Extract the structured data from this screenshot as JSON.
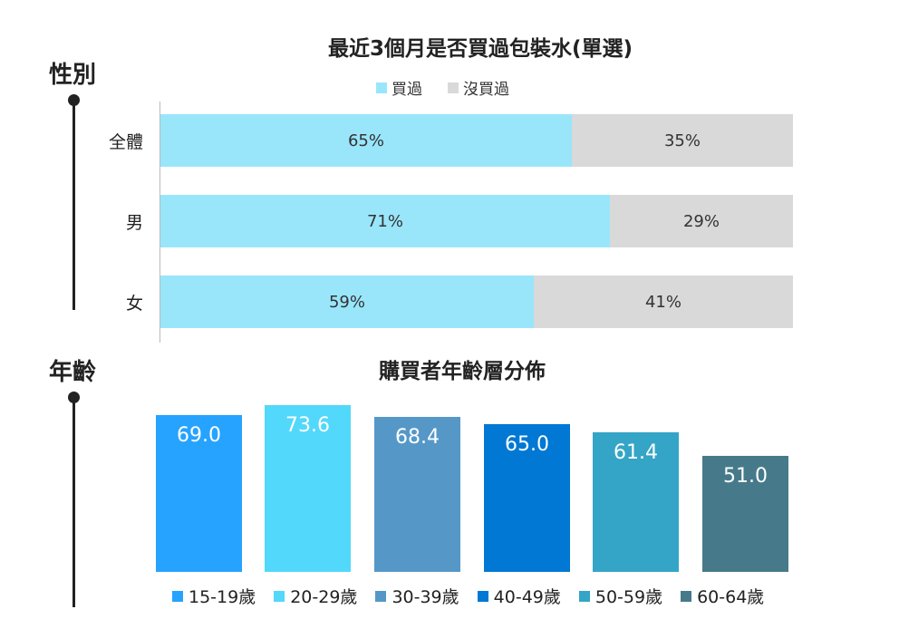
{
  "sections": {
    "gender_label": "性別",
    "age_label": "年齡"
  },
  "chart_data": [
    {
      "type": "bar",
      "orientation": "horizontal-stacked",
      "title": "最近3個月是否買過包裝水(單選)",
      "categories": [
        "全體",
        "男",
        "女"
      ],
      "series": [
        {
          "name": "買過",
          "values": [
            65,
            71,
            59
          ],
          "labels": [
            "65%",
            "71%",
            "59%"
          ],
          "color": "#99e6fb"
        },
        {
          "name": "沒買過",
          "values": [
            35,
            29,
            41
          ],
          "labels": [
            "35%",
            "29%",
            "41%"
          ],
          "color": "#d9d9d9"
        }
      ],
      "legend": "top"
    },
    {
      "type": "bar",
      "title": "購買者年齡層分佈",
      "categories": [
        "15-19歲",
        "20-29歲",
        "30-39歲",
        "40-49歲",
        "50-59歲",
        "60-64歲"
      ],
      "values": [
        69.0,
        73.6,
        68.4,
        65.0,
        61.4,
        51.0
      ],
      "labels": [
        "69.0",
        "73.6",
        "68.4",
        "65.0",
        "61.4",
        "51.0"
      ],
      "colors": [
        "#26a3ff",
        "#52d8fa",
        "#5598c8",
        "#0078d4",
        "#34a5c6",
        "#467a8a"
      ],
      "ylim": [
        0,
        80
      ],
      "legend": "bottom"
    }
  ]
}
